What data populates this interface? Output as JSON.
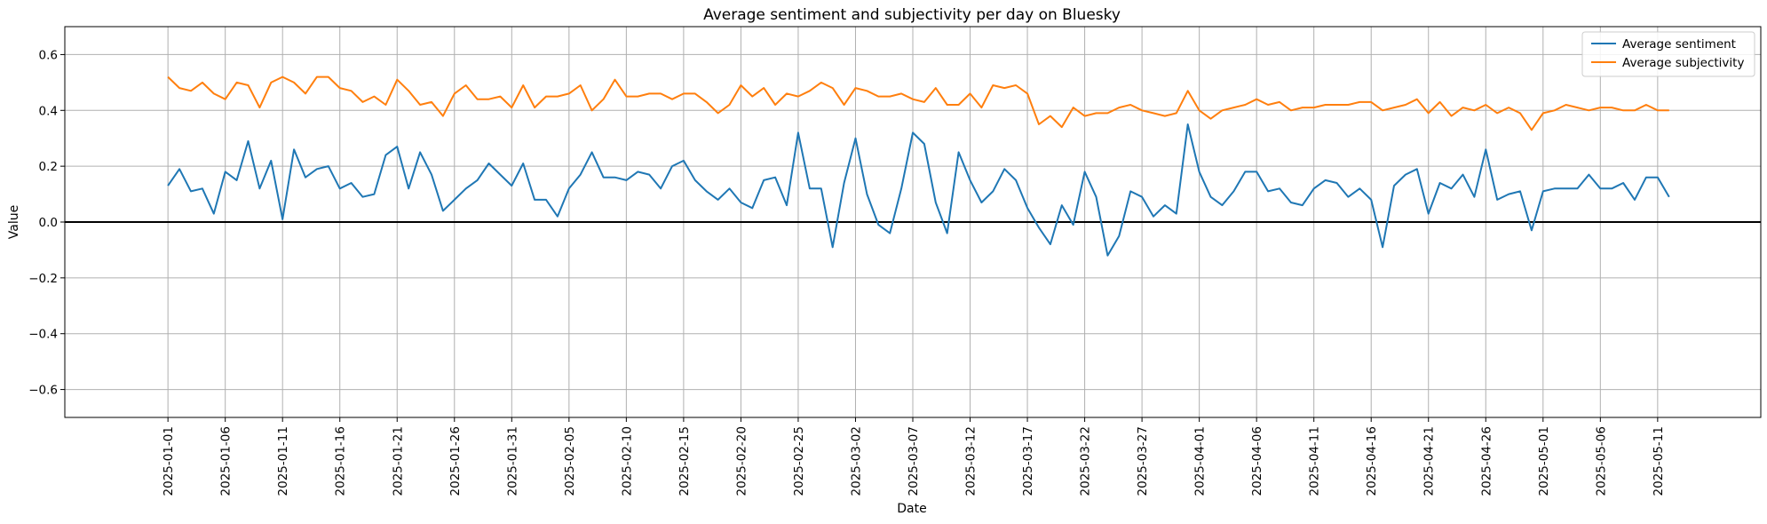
{
  "chart_data": {
    "type": "line",
    "title": "Average sentiment and subjectivity per day on Bluesky",
    "xlabel": "Date",
    "ylabel": "Value",
    "ylim": [
      -0.7,
      0.7
    ],
    "yticks": [
      -0.6,
      -0.4,
      -0.2,
      0.0,
      0.2,
      0.4,
      0.6
    ],
    "ytick_labels": [
      "−0.6",
      "−0.4",
      "−0.2",
      "0.0",
      "0.2",
      "0.4",
      "0.6"
    ],
    "xrange": [
      "2024-12-23",
      "2025-05-20"
    ],
    "xticks": [
      "2025-01-01",
      "2025-01-06",
      "2025-01-11",
      "2025-01-16",
      "2025-01-21",
      "2025-01-26",
      "2025-01-31",
      "2025-02-05",
      "2025-02-10",
      "2025-02-15",
      "2025-02-20",
      "2025-02-25",
      "2025-03-02",
      "2025-03-07",
      "2025-03-12",
      "2025-03-17",
      "2025-03-22",
      "2025-03-27",
      "2025-04-01",
      "2025-04-06",
      "2025-04-11",
      "2025-04-16",
      "2025-04-21",
      "2025-04-26",
      "2025-05-01",
      "2025-05-06",
      "2025-05-11"
    ],
    "grid": true,
    "reference_line": 0.0,
    "legend_position": "top-right",
    "start_date": "2025-01-01",
    "series": [
      {
        "name": "Average sentiment",
        "color": "#1f77b4",
        "values": [
          0.13,
          0.19,
          0.11,
          0.12,
          0.03,
          0.18,
          0.15,
          0.29,
          0.12,
          0.22,
          0.01,
          0.26,
          0.16,
          0.19,
          0.2,
          0.12,
          0.14,
          0.09,
          0.1,
          0.24,
          0.27,
          0.12,
          0.25,
          0.17,
          0.04,
          0.08,
          0.12,
          0.15,
          0.21,
          0.17,
          0.13,
          0.21,
          0.08,
          0.08,
          0.02,
          0.12,
          0.17,
          0.25,
          0.16,
          0.16,
          0.15,
          0.18,
          0.17,
          0.12,
          0.2,
          0.22,
          0.15,
          0.11,
          0.08,
          0.12,
          0.07,
          0.05,
          0.15,
          0.16,
          0.06,
          0.32,
          0.12,
          0.12,
          -0.09,
          0.14,
          0.3,
          0.1,
          -0.01,
          -0.04,
          0.12,
          0.32,
          0.28,
          0.07,
          -0.04,
          0.25,
          0.15,
          0.07,
          0.11,
          0.19,
          0.15,
          0.05,
          -0.02,
          -0.08,
          0.06,
          -0.01,
          0.18,
          0.09,
          -0.12,
          -0.05,
          0.11,
          0.09,
          0.02,
          0.06,
          0.03,
          0.35,
          0.18,
          0.09,
          0.06,
          0.11,
          0.18,
          0.18,
          0.11,
          0.12,
          0.07,
          0.06,
          0.12,
          0.15,
          0.14,
          0.09,
          0.12,
          0.08,
          -0.09,
          0.13,
          0.17,
          0.19,
          0.03,
          0.14,
          0.12,
          0.17,
          0.09,
          0.26,
          0.08,
          0.1,
          0.11,
          -0.03,
          0.11,
          0.12,
          0.12,
          0.12,
          0.17,
          0.12,
          0.12,
          0.14,
          0.08,
          0.16,
          0.16,
          0.09
        ]
      },
      {
        "name": "Average subjectivity",
        "color": "#ff7f0e",
        "values": [
          0.52,
          0.48,
          0.47,
          0.5,
          0.46,
          0.44,
          0.5,
          0.49,
          0.41,
          0.5,
          0.52,
          0.5,
          0.46,
          0.52,
          0.52,
          0.48,
          0.47,
          0.43,
          0.45,
          0.42,
          0.51,
          0.47,
          0.42,
          0.43,
          0.38,
          0.46,
          0.49,
          0.44,
          0.44,
          0.45,
          0.41,
          0.49,
          0.41,
          0.45,
          0.45,
          0.46,
          0.49,
          0.4,
          0.44,
          0.51,
          0.45,
          0.45,
          0.46,
          0.46,
          0.44,
          0.46,
          0.46,
          0.43,
          0.39,
          0.42,
          0.49,
          0.45,
          0.48,
          0.42,
          0.46,
          0.45,
          0.47,
          0.5,
          0.48,
          0.42,
          0.48,
          0.47,
          0.45,
          0.45,
          0.46,
          0.44,
          0.43,
          0.48,
          0.42,
          0.42,
          0.46,
          0.41,
          0.49,
          0.48,
          0.49,
          0.46,
          0.35,
          0.38,
          0.34,
          0.41,
          0.38,
          0.39,
          0.39,
          0.41,
          0.42,
          0.4,
          0.39,
          0.38,
          0.39,
          0.47,
          0.4,
          0.37,
          0.4,
          0.41,
          0.42,
          0.44,
          0.42,
          0.43,
          0.4,
          0.41,
          0.41,
          0.42,
          0.42,
          0.42,
          0.43,
          0.43,
          0.4,
          0.41,
          0.42,
          0.44,
          0.39,
          0.43,
          0.38,
          0.41,
          0.4,
          0.42,
          0.39,
          0.41,
          0.39,
          0.33,
          0.39,
          0.4,
          0.42,
          0.41,
          0.4,
          0.41,
          0.41,
          0.4,
          0.4,
          0.42,
          0.4,
          0.4
        ]
      }
    ]
  }
}
